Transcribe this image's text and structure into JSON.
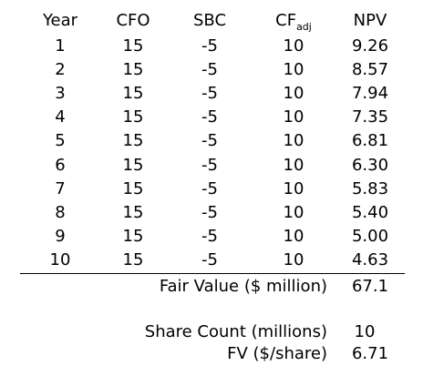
{
  "table": {
    "headers": {
      "year": "Year",
      "cfo": "CFO",
      "sbc": "SBC",
      "cf_main": "CF",
      "cf_sub": "adj",
      "npv": "NPV"
    },
    "rows": [
      {
        "year": "1",
        "cfo": "15",
        "sbc": "-5",
        "cf": "10",
        "npv": "9.26"
      },
      {
        "year": "2",
        "cfo": "15",
        "sbc": "-5",
        "cf": "10",
        "npv": "8.57"
      },
      {
        "year": "3",
        "cfo": "15",
        "sbc": "-5",
        "cf": "10",
        "npv": "7.94"
      },
      {
        "year": "4",
        "cfo": "15",
        "sbc": "-5",
        "cf": "10",
        "npv": "7.35"
      },
      {
        "year": "5",
        "cfo": "15",
        "sbc": "-5",
        "cf": "10",
        "npv": "6.81"
      },
      {
        "year": "6",
        "cfo": "15",
        "sbc": "-5",
        "cf": "10",
        "npv": "6.30"
      },
      {
        "year": "7",
        "cfo": "15",
        "sbc": "-5",
        "cf": "10",
        "npv": "5.83"
      },
      {
        "year": "8",
        "cfo": "15",
        "sbc": "-5",
        "cf": "10",
        "npv": "5.40"
      },
      {
        "year": "9",
        "cfo": "15",
        "sbc": "-5",
        "cf": "10",
        "npv": "5.00"
      },
      {
        "year": "10",
        "cfo": "15",
        "sbc": "-5",
        "cf": "10",
        "npv": "4.63"
      }
    ]
  },
  "summary": {
    "fair_value_label": "Fair Value ($ million)",
    "fair_value": "67.1",
    "share_count_label": "Share Count (millions)",
    "share_count": "10",
    "fv_per_share_label": "FV ($/share)",
    "fv_per_share": "6.71"
  },
  "colors": {
    "text": "#000000",
    "background": "#ffffff",
    "rule": "#000000"
  }
}
